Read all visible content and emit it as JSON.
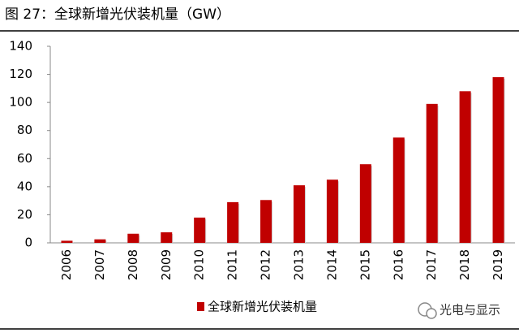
{
  "chart_data": {
    "type": "bar",
    "title": "图 27：全球新增光伏装机量（GW）",
    "categories": [
      "2006",
      "2007",
      "2008",
      "2009",
      "2010",
      "2011",
      "2012",
      "2013",
      "2014",
      "2015",
      "2016",
      "2017",
      "2018",
      "2019"
    ],
    "series": [
      {
        "name": "全球新增光伏装机量",
        "color": "#c00000",
        "values": [
          1.5,
          2.5,
          6.5,
          7.5,
          18,
          29,
          30.5,
          41,
          45,
          56,
          75,
          99,
          108,
          118
        ]
      }
    ],
    "ylim": [
      0,
      140
    ],
    "yticks": [
      0,
      20,
      40,
      60,
      80,
      100,
      120,
      140
    ]
  },
  "watermark": "光电与显示"
}
